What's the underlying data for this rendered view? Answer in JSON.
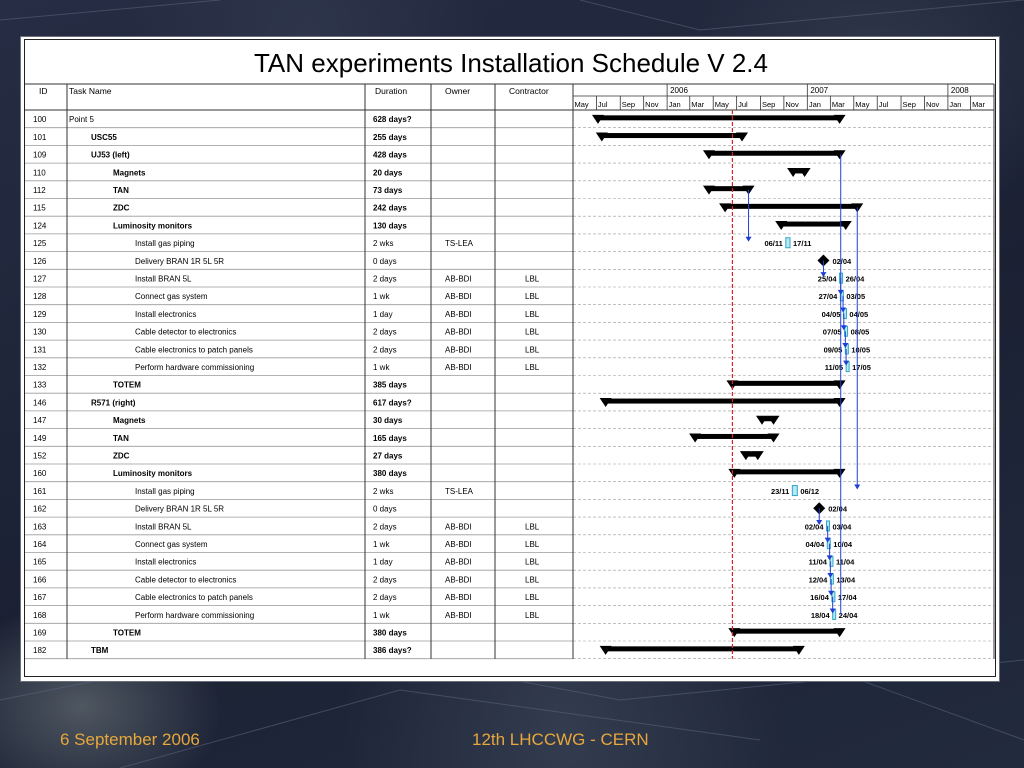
{
  "slide": {
    "footer_date": "6 September 2006",
    "footer_event": "12th LHCCWG - CERN",
    "accent_color": "#e7a73b"
  },
  "chart_data": {
    "type": "table",
    "title": "TAN experiments Installation Schedule V 2.4",
    "columns": [
      "ID",
      "Task Name",
      "Duration",
      "Owner",
      "Contractor"
    ],
    "timeline": {
      "years": [
        "2006",
        "2007",
        "2008"
      ],
      "months": [
        "May",
        "Jul",
        "Sep",
        "Nov",
        "Jan",
        "Mar",
        "May",
        "Jul",
        "Sep",
        "Nov",
        "Jan",
        "Mar",
        "May",
        "Jul",
        "Sep",
        "Nov",
        "Jan",
        "Mar"
      ],
      "month_starts": [
        "2006-05",
        "2006-07",
        "2006-09",
        "2006-11",
        "2007-01",
        "2007-03",
        "2007-05",
        "2007-07",
        "2007-09",
        "2007-11",
        "2008-01",
        "2008-03",
        "2008-05",
        "2008-07",
        "2008-09",
        "2008-11",
        "2009-01",
        "2009-03"
      ],
      "year_starts": [
        "2007-01",
        "2008-01",
        "2009-01"
      ],
      "start": "2006-05-01",
      "end": "2009-05-01",
      "status_date": "2007-06-20"
    },
    "rows": [
      {
        "id": "100",
        "name": "Point 5",
        "duration": "628 days?",
        "owner": "",
        "contractor": "",
        "level": 0,
        "bold": false,
        "type": "summary",
        "start": "2006-07-05",
        "end": "2008-03-25"
      },
      {
        "id": "101",
        "name": "USC55",
        "duration": "255 days",
        "owner": "",
        "contractor": "",
        "level": 1,
        "bold": true,
        "type": "summary",
        "start": "2006-07-15",
        "end": "2007-07-15"
      },
      {
        "id": "109",
        "name": "UJ53 (left)",
        "duration": "428 days",
        "owner": "",
        "contractor": "",
        "level": 1,
        "bold": true,
        "type": "summary",
        "start": "2007-04-20",
        "end": "2008-03-25"
      },
      {
        "id": "110",
        "name": "Magnets",
        "duration": "20 days",
        "owner": "",
        "contractor": "",
        "level": 2,
        "bold": true,
        "type": "summary",
        "start": "2007-11-25",
        "end": "2007-12-25"
      },
      {
        "id": "112",
        "name": "TAN",
        "duration": "73 days",
        "owner": "",
        "contractor": "",
        "level": 2,
        "bold": true,
        "type": "summary",
        "start": "2007-04-20",
        "end": "2007-08-01"
      },
      {
        "id": "115",
        "name": "ZDC",
        "duration": "242 days",
        "owner": "",
        "contractor": "",
        "level": 2,
        "bold": true,
        "type": "summary",
        "start": "2007-06-01",
        "end": "2008-05-10"
      },
      {
        "id": "124",
        "name": "Luminosity monitors",
        "duration": "130 days",
        "owner": "",
        "contractor": "",
        "level": 2,
        "bold": true,
        "type": "summary",
        "start": "2007-10-25",
        "end": "2008-04-10"
      },
      {
        "id": "125",
        "name": "Install gas piping",
        "duration": "2 wks",
        "owner": "TS-LEA",
        "contractor": "",
        "level": 3,
        "bold": false,
        "type": "task",
        "start": "2007-11-06",
        "end": "2007-11-17",
        "start_label": "06/11",
        "end_label": "17/11"
      },
      {
        "id": "126",
        "name": "Delivery BRAN 1R 5L 5R",
        "duration": "0 days",
        "owner": "",
        "contractor": "",
        "level": 3,
        "bold": false,
        "type": "milestone",
        "start": "2008-02-12",
        "end": "2008-02-12",
        "start_label": "",
        "end_label": "02/04"
      },
      {
        "id": "127",
        "name": "Install BRAN 5L",
        "duration": "2 days",
        "owner": "AB-BDI",
        "contractor": "LBL",
        "level": 3,
        "bold": false,
        "type": "task",
        "start": "2008-03-25",
        "end": "2008-03-28",
        "start_label": "25/04",
        "end_label": "26/04"
      },
      {
        "id": "128",
        "name": "Connect gas system",
        "duration": "1 wk",
        "owner": "AB-BDI",
        "contractor": "LBL",
        "level": 3,
        "bold": false,
        "type": "task",
        "start": "2008-03-27",
        "end": "2008-04-03",
        "start_label": "27/04",
        "end_label": "03/05"
      },
      {
        "id": "129",
        "name": "Install electronics",
        "duration": "1 day",
        "owner": "AB-BDI",
        "contractor": "LBL",
        "level": 3,
        "bold": false,
        "type": "task",
        "start": "2008-04-04",
        "end": "2008-04-05",
        "start_label": "04/05",
        "end_label": "04/05"
      },
      {
        "id": "130",
        "name": "Cable detector to electronics",
        "duration": "2 days",
        "owner": "AB-BDI",
        "contractor": "LBL",
        "level": 3,
        "bold": false,
        "type": "task",
        "start": "2008-04-07",
        "end": "2008-04-09",
        "start_label": "07/05",
        "end_label": "08/05"
      },
      {
        "id": "131",
        "name": "Cable electronics to patch panels",
        "duration": "2 days",
        "owner": "AB-BDI",
        "contractor": "LBL",
        "level": 3,
        "bold": false,
        "type": "task",
        "start": "2008-04-09",
        "end": "2008-04-11",
        "start_label": "09/05",
        "end_label": "10/05"
      },
      {
        "id": "132",
        "name": "Perform hardware commissioning",
        "duration": "1 wk",
        "owner": "AB-BDI",
        "contractor": "LBL",
        "level": 3,
        "bold": false,
        "type": "task",
        "start": "2008-04-11",
        "end": "2008-04-17",
        "start_label": "11/05",
        "end_label": "17/05"
      },
      {
        "id": "133",
        "name": "TOTEM",
        "duration": "385 days",
        "owner": "",
        "contractor": "",
        "level": 2,
        "bold": true,
        "type": "summary",
        "start": "2007-06-20",
        "end": "2008-03-25"
      },
      {
        "id": "146",
        "name": "R571 (right)",
        "duration": "617 days?",
        "owner": "",
        "contractor": "",
        "level": 1,
        "bold": true,
        "type": "summary",
        "start": "2006-07-25",
        "end": "2008-03-25"
      },
      {
        "id": "147",
        "name": "Magnets",
        "duration": "30 days",
        "owner": "",
        "contractor": "",
        "level": 2,
        "bold": true,
        "type": "summary",
        "start": "2007-09-05",
        "end": "2007-10-05"
      },
      {
        "id": "149",
        "name": "TAN",
        "duration": "165 days",
        "owner": "",
        "contractor": "",
        "level": 2,
        "bold": true,
        "type": "summary",
        "start": "2007-03-15",
        "end": "2007-10-05"
      },
      {
        "id": "152",
        "name": "ZDC",
        "duration": "27 days",
        "owner": "",
        "contractor": "",
        "level": 2,
        "bold": true,
        "type": "summary",
        "start": "2007-07-25",
        "end": "2007-08-25"
      },
      {
        "id": "160",
        "name": "Luminosity monitors",
        "duration": "380 days",
        "owner": "",
        "contractor": "",
        "level": 2,
        "bold": true,
        "type": "summary",
        "start": "2007-06-25",
        "end": "2008-03-25"
      },
      {
        "id": "161",
        "name": "Install gas piping",
        "duration": "2 wks",
        "owner": "TS-LEA",
        "contractor": "",
        "level": 3,
        "bold": false,
        "type": "task",
        "start": "2007-11-23",
        "end": "2007-12-06",
        "start_label": "23/11",
        "end_label": "06/12"
      },
      {
        "id": "162",
        "name": "Delivery BRAN 1R 5L 5R",
        "duration": "0 days",
        "owner": "",
        "contractor": "",
        "level": 3,
        "bold": false,
        "type": "milestone",
        "start": "2008-02-01",
        "end": "2008-02-01",
        "start_label": "",
        "end_label": "02/04"
      },
      {
        "id": "163",
        "name": "Install BRAN 5L",
        "duration": "2 days",
        "owner": "AB-BDI",
        "contractor": "LBL",
        "level": 3,
        "bold": false,
        "type": "task",
        "start": "2008-02-20",
        "end": "2008-02-23",
        "start_label": "02/04",
        "end_label": "03/04"
      },
      {
        "id": "164",
        "name": "Connect gas system",
        "duration": "1 wk",
        "owner": "AB-BDI",
        "contractor": "LBL",
        "level": 3,
        "bold": false,
        "type": "task",
        "start": "2008-02-22",
        "end": "2008-02-28",
        "start_label": "04/04",
        "end_label": "10/04"
      },
      {
        "id": "165",
        "name": "Install electronics",
        "duration": "1 day",
        "owner": "AB-BDI",
        "contractor": "LBL",
        "level": 3,
        "bold": false,
        "type": "task",
        "start": "2008-02-29",
        "end": "2008-03-01",
        "start_label": "11/04",
        "end_label": "11/04"
      },
      {
        "id": "166",
        "name": "Cable detector to electronics",
        "duration": "2 days",
        "owner": "AB-BDI",
        "contractor": "LBL",
        "level": 3,
        "bold": false,
        "type": "task",
        "start": "2008-03-01",
        "end": "2008-03-03",
        "start_label": "12/04",
        "end_label": "13/04"
      },
      {
        "id": "167",
        "name": "Cable electronics to patch panels",
        "duration": "2 days",
        "owner": "AB-BDI",
        "contractor": "LBL",
        "level": 3,
        "bold": false,
        "type": "task",
        "start": "2008-03-05",
        "end": "2008-03-07",
        "start_label": "16/04",
        "end_label": "17/04"
      },
      {
        "id": "168",
        "name": "Perform hardware commissioning",
        "duration": "1 wk",
        "owner": "AB-BDI",
        "contractor": "LBL",
        "level": 3,
        "bold": false,
        "type": "task",
        "start": "2008-03-07",
        "end": "2008-03-13",
        "start_label": "18/04",
        "end_label": "24/04"
      },
      {
        "id": "169",
        "name": "TOTEM",
        "duration": "380 days",
        "owner": "",
        "contractor": "",
        "level": 2,
        "bold": true,
        "type": "summary",
        "start": "2007-06-25",
        "end": "2008-03-25"
      },
      {
        "id": "182",
        "name": "TBM",
        "duration": "386 days?",
        "owner": "",
        "contractor": "",
        "level": 1,
        "bold": true,
        "type": "summary",
        "start": "2006-07-25",
        "end": "2007-12-10"
      }
    ]
  }
}
